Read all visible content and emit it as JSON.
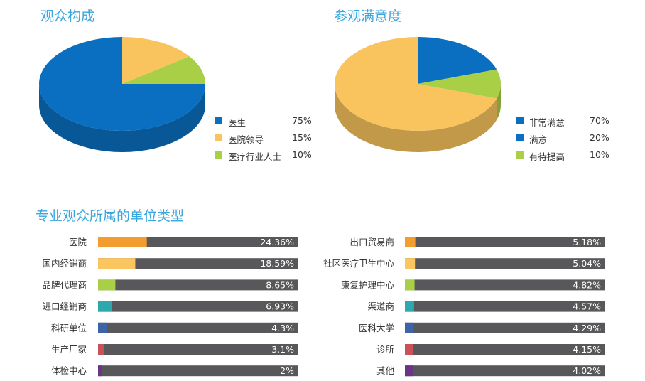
{
  "chart_data": [
    {
      "type": "pie",
      "title": "观众构成",
      "categories": [
        "医生",
        "医院领导",
        "医疗行业人士"
      ],
      "values": [
        75,
        15,
        10
      ],
      "value_labels": [
        "75%",
        "15%",
        "10%"
      ],
      "colors": [
        "#0a6fc0",
        "#f9c35e",
        "#a8cf45"
      ],
      "legend_position": "right"
    },
    {
      "type": "pie",
      "title": "参观满意度",
      "categories": [
        "非常满意",
        "满意",
        "有待提高"
      ],
      "values": [
        70,
        20,
        10
      ],
      "value_labels": [
        "70%",
        "20%",
        "10%"
      ],
      "colors": [
        "#f9c35e",
        "#0a6fc0",
        "#a8cf45"
      ],
      "legend_colors": [
        "#0a6fc0",
        "#0a6fc0",
        "#a8cf45"
      ],
      "legend_position": "right"
    },
    {
      "type": "bar",
      "orientation": "horizontal",
      "title": "专业观众所属的单位类型",
      "columns": [
        {
          "categories": [
            "医院",
            "国内经销商",
            "品牌代理商",
            "进口经销商",
            "科研单位",
            "生产厂家",
            "体检中心"
          ],
          "values": [
            24.36,
            18.59,
            8.65,
            6.93,
            4.3,
            3.1,
            2
          ],
          "value_labels": [
            "24.36%",
            "18.59%",
            "8.65%",
            "6.93%",
            "4.3%",
            "3.1%",
            "2%"
          ]
        },
        {
          "categories": [
            "出口贸易商",
            "社区医疗卫生中心",
            "康复护理中心",
            "渠道商",
            "医科大学",
            "诊所",
            "其他"
          ],
          "values": [
            5.18,
            5.04,
            4.82,
            4.57,
            4.29,
            4.15,
            4.02
          ],
          "value_labels": [
            "5.18%",
            "5.04%",
            "4.82%",
            "4.57%",
            "4.29%",
            "4.15%",
            "4.02%"
          ]
        }
      ],
      "colors": [
        "#f39c2f",
        "#fbc55f",
        "#a8cf45",
        "#2fa8ad",
        "#3d64a8",
        "#c9525a",
        "#6a3587"
      ],
      "track_color": "#58585b",
      "xlim": [
        0,
        100
      ]
    }
  ]
}
